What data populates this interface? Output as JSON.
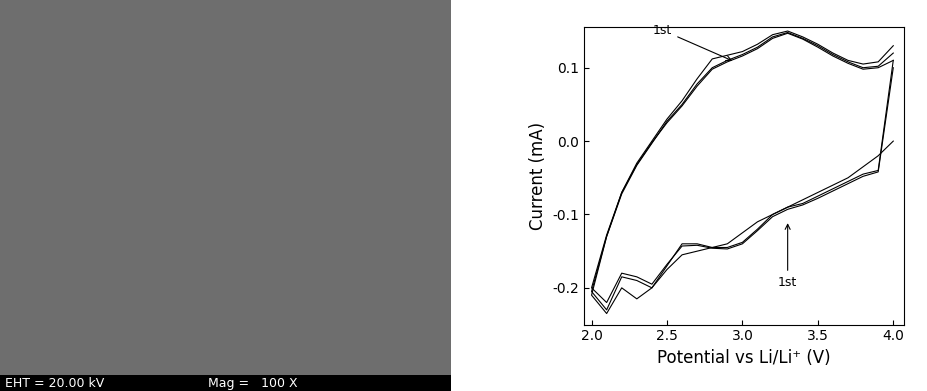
{
  "sem_image": {
    "info_bar": [
      "EHT = 20.00 kV",
      "Mag =   100 X"
    ]
  },
  "chart_data": {
    "type": "line",
    "x_label": "Potential vs Li/Li⁺ (V)",
    "y_label": "Current (mA)",
    "xlim": [
      1.95,
      4.07
    ],
    "ylim": [
      -0.25,
      0.155
    ],
    "xticks": [
      {
        "value": 2.0,
        "label": "2.0"
      },
      {
        "value": 2.5,
        "label": "2.5"
      },
      {
        "value": 3.0,
        "label": "3.0"
      },
      {
        "value": 3.5,
        "label": "3.5"
      },
      {
        "value": 4.0,
        "label": "4.0"
      }
    ],
    "yticks": [
      -0.2,
      -0.1,
      {
        "value": 0.0,
        "label": "0.0"
      },
      0.1
    ],
    "grid": false,
    "annotations": [
      {
        "text": "1st",
        "x": 2.95,
        "y": 0.108,
        "side": "upper"
      },
      {
        "text": "1st",
        "x": 3.3,
        "y": -0.108,
        "side": "lower"
      }
    ],
    "series": [
      {
        "color": "#000000",
        "x": [
          4.0,
          3.9,
          3.8,
          3.7,
          3.6,
          3.5,
          3.4,
          3.3,
          3.2,
          3.1,
          3.0,
          2.9,
          2.8,
          2.7,
          2.6,
          2.5,
          2.4,
          2.3,
          2.2,
          2.1,
          2.0,
          2.1,
          2.2,
          2.3,
          2.4,
          2.5,
          2.6,
          2.7,
          2.8,
          2.9,
          3.0,
          3.1,
          3.2,
          3.3,
          3.4,
          3.5,
          3.6,
          3.7,
          3.8,
          3.9,
          4.0
        ],
        "values": [
          0.0,
          -0.02,
          -0.035,
          -0.05,
          -0.06,
          -0.07,
          -0.08,
          -0.09,
          -0.1,
          -0.11,
          -0.125,
          -0.14,
          -0.145,
          -0.15,
          -0.155,
          -0.175,
          -0.2,
          -0.215,
          -0.2,
          -0.235,
          -0.21,
          -0.13,
          -0.07,
          -0.03,
          0.0,
          0.03,
          0.055,
          0.085,
          0.112,
          0.117,
          0.122,
          0.132,
          0.145,
          0.15,
          0.142,
          0.132,
          0.12,
          0.11,
          0.105,
          0.108,
          0.13
        ]
      },
      {
        "color": "#000000",
        "x": [
          4.0,
          3.9,
          3.8,
          3.7,
          3.6,
          3.5,
          3.4,
          3.3,
          3.2,
          3.1,
          3.0,
          2.9,
          2.8,
          2.7,
          2.6,
          2.5,
          2.4,
          2.3,
          2.2,
          2.1,
          2.0,
          2.1,
          2.2,
          2.3,
          2.4,
          2.5,
          2.6,
          2.7,
          2.8,
          2.9,
          3.0,
          3.1,
          3.2,
          3.3,
          3.4,
          3.5,
          3.6,
          3.7,
          3.8,
          3.9,
          4.0
        ],
        "values": [
          0.11,
          -0.04,
          -0.045,
          -0.055,
          -0.065,
          -0.075,
          -0.085,
          -0.09,
          -0.1,
          -0.12,
          -0.138,
          -0.145,
          -0.145,
          -0.14,
          -0.14,
          -0.17,
          -0.2,
          -0.19,
          -0.185,
          -0.23,
          -0.205,
          -0.13,
          -0.072,
          -0.033,
          -0.003,
          0.027,
          0.05,
          0.078,
          0.1,
          0.11,
          0.118,
          0.128,
          0.142,
          0.148,
          0.14,
          0.13,
          0.118,
          0.108,
          0.1,
          0.102,
          0.12
        ]
      },
      {
        "color": "#000000",
        "x": [
          4.0,
          3.9,
          3.8,
          3.7,
          3.6,
          3.5,
          3.4,
          3.3,
          3.2,
          3.1,
          3.0,
          2.9,
          2.8,
          2.7,
          2.6,
          2.5,
          2.4,
          2.3,
          2.2,
          2.1,
          2.0,
          2.1,
          2.2,
          2.3,
          2.4,
          2.5,
          2.6,
          2.7,
          2.8,
          2.9,
          3.0,
          3.1,
          3.2,
          3.3,
          3.4,
          3.5,
          3.6,
          3.7,
          3.8,
          3.9,
          4.0
        ],
        "values": [
          0.1,
          -0.042,
          -0.048,
          -0.058,
          -0.068,
          -0.078,
          -0.087,
          -0.093,
          -0.103,
          -0.122,
          -0.14,
          -0.147,
          -0.146,
          -0.142,
          -0.143,
          -0.168,
          -0.195,
          -0.185,
          -0.18,
          -0.22,
          -0.2,
          -0.128,
          -0.07,
          -0.032,
          -0.002,
          0.025,
          0.048,
          0.075,
          0.098,
          0.108,
          0.116,
          0.126,
          0.14,
          0.147,
          0.139,
          0.128,
          0.116,
          0.106,
          0.098,
          0.1,
          0.11
        ]
      }
    ]
  }
}
